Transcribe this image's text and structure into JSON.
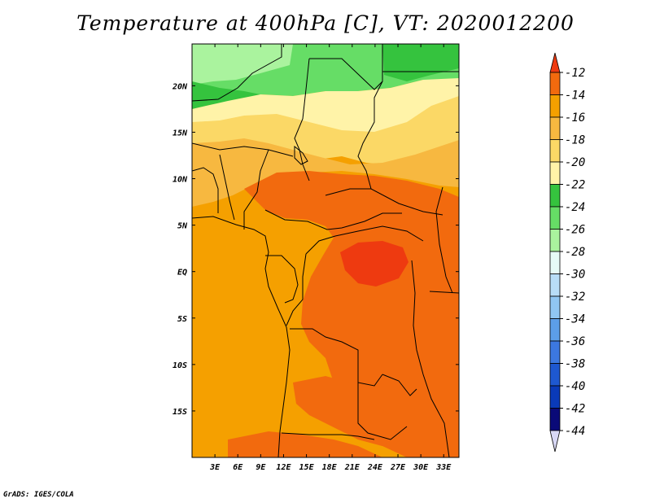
{
  "title": "Temperature at 400hPa [C], VT: 2020012200",
  "credit": "GrADS: IGES/COLA",
  "map": {
    "lon_range": [
      0,
      35
    ],
    "lat_range": [
      -20,
      24.5
    ],
    "lon_ticks": [
      "3E",
      "6E",
      "9E",
      "12E",
      "15E",
      "18E",
      "21E",
      "24E",
      "27E",
      "30E",
      "33E"
    ],
    "lat_ticks": [
      "20N",
      "15N",
      "10N",
      "5N",
      "EQ",
      "5S",
      "10S",
      "15S"
    ]
  },
  "colorbar": {
    "labels": [
      "-12",
      "-14",
      "-16",
      "-18",
      "-20",
      "-22",
      "-24",
      "-26",
      "-28",
      "-30",
      "-32",
      "-34",
      "-36",
      "-38",
      "-40",
      "-42",
      "-44"
    ],
    "colors": [
      "#ee3a10",
      "#f26a0e",
      "#f5a000",
      "#f7b840",
      "#fbd866",
      "#fff3a8",
      "#35c33e",
      "#66dd66",
      "#aaf39e",
      "#e6fbf7",
      "#b8ddf7",
      "#90c6f2",
      "#5c9ee8",
      "#3c78e0",
      "#1e58d0",
      "#0a3ab8",
      "#0a0a78",
      "#d8d8f5"
    ]
  },
  "fill_colors": {
    "ocean": "#f5a000",
    "north_green": "#66dd66",
    "north_lightgreen": "#aaf39e",
    "north_darkgreen": "#35c33e",
    "yellow": "#fff3a8",
    "light_orange": "#fbd866",
    "mid_orange": "#f7b840",
    "orange_red": "#f26a0e",
    "red": "#ee3a10"
  }
}
